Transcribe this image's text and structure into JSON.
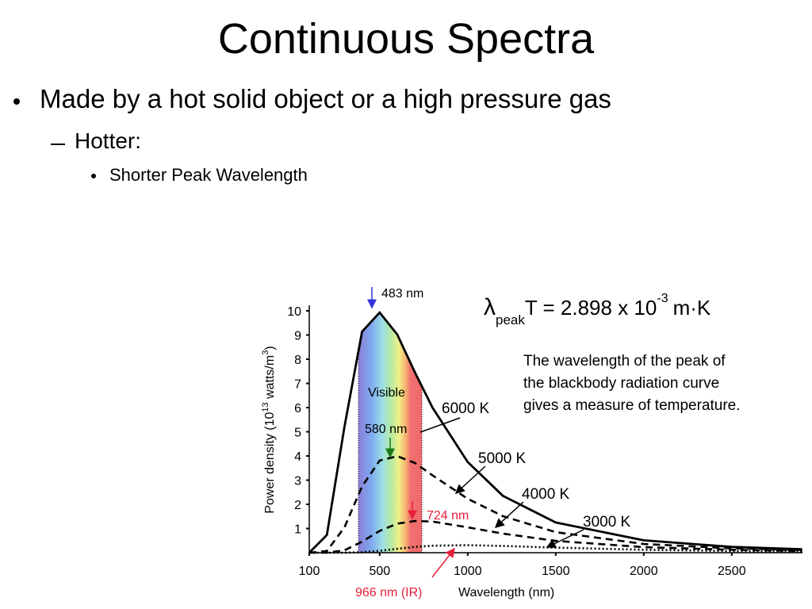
{
  "slide": {
    "title": "Continuous Spectra",
    "bullet": "Made by a hot solid object or a high pressure gas",
    "sub_bullet": "Hotter:",
    "sub_sub_bullet": "Shorter Peak Wavelength"
  },
  "chart_data": {
    "type": "line",
    "x_label": "Wavelength (nm)",
    "y_label": [
      "Power density (10",
      "13",
      " watts/m",
      "3",
      ")"
    ],
    "x": [
      100,
      200,
      300,
      400,
      500,
      600,
      700,
      800,
      1000,
      1200,
      1500,
      2000,
      2500,
      2900
    ],
    "series": [
      {
        "name": "6000 K",
        "color": "#000000",
        "line_style": "solid",
        "values": [
          0,
          0.73,
          5.21,
          9.14,
          9.93,
          9.02,
          7.46,
          6.0,
          3.75,
          2.35,
          1.25,
          0.51,
          0.24,
          0.14
        ]
      },
      {
        "name": "5000 K",
        "color": "#000000",
        "line_style": "dashed",
        "values": [
          0,
          0.07,
          1.05,
          2.74,
          3.81,
          3.99,
          3.71,
          3.2,
          2.23,
          1.51,
          0.85,
          0.36,
          0.18,
          0.11
        ]
      },
      {
        "name": "4000 K",
        "color": "#000000",
        "line_style": "dashed",
        "values": [
          0,
          0,
          0.1,
          0.46,
          0.9,
          1.2,
          1.31,
          1.29,
          1.05,
          0.79,
          0.49,
          0.23,
          0.12,
          0.07
        ]
      },
      {
        "name": "3000 K",
        "color": "#000000",
        "line_style": "dotted",
        "values": [
          0,
          0,
          0,
          0.02,
          0.08,
          0.16,
          0.24,
          0.29,
          0.31,
          0.28,
          0.21,
          0.12,
          0.07,
          0.04
        ]
      }
    ],
    "xlim": [
      100,
      2900
    ],
    "xticks": [
      100,
      500,
      1000,
      1500,
      2000,
      2500
    ],
    "ylim": [
      0,
      10
    ],
    "yticks": [
      1,
      2,
      3,
      4,
      5,
      6,
      7,
      8,
      9,
      10
    ],
    "annotations": [
      "483 nm",
      "Visible",
      "580 nm",
      "724 nm",
      "966 nm (IR)"
    ],
    "equation": [
      "λ",
      "peak",
      "T = 2.898  x 10",
      "-3",
      "m·K"
    ],
    "note": [
      "The wavelength of the peak of",
      "the blackbody radiation curve",
      "gives a measure of temperature."
    ]
  }
}
